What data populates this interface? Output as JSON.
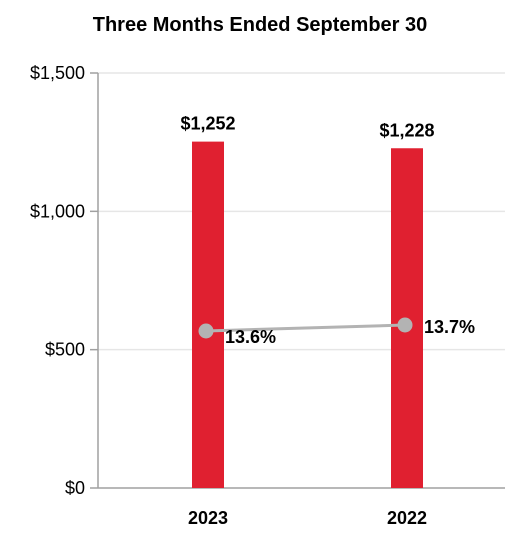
{
  "chart_data": {
    "type": "bar",
    "title": "Three Months Ended September 30",
    "categories": [
      "2023",
      "2022"
    ],
    "series": [
      {
        "values": [
          1252,
          1228
        ],
        "color": "#e02030",
        "labels": [
          "$1,252",
          "$1,228"
        ]
      }
    ],
    "line_series": {
      "values": [
        13.6,
        13.7
      ],
      "labels": [
        "13.6%",
        "13.7%"
      ],
      "color": "#b3b3b3"
    },
    "yticks": [
      {
        "value": 0,
        "label": "$0"
      },
      {
        "value": 500,
        "label": "$500"
      },
      {
        "value": 1000,
        "label": "$1,000"
      },
      {
        "value": 1500,
        "label": "$1,500"
      }
    ],
    "ylim": [
      0,
      1500
    ],
    "grid": true,
    "legend": "none"
  }
}
